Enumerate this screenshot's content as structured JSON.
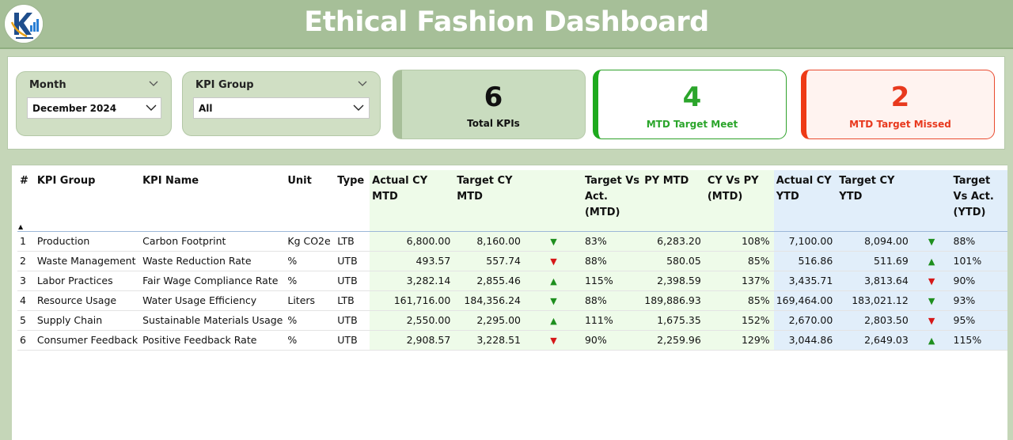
{
  "header": {
    "title": "Ethical Fashion Dashboard"
  },
  "filters": {
    "month": {
      "label": "Month",
      "value": "December 2024"
    },
    "kpi_group": {
      "label": "KPI Group",
      "value": "All"
    }
  },
  "cards": {
    "total": {
      "value": "6",
      "label": "Total KPIs"
    },
    "meet": {
      "value": "4",
      "label": "MTD Target Meet"
    },
    "missed": {
      "value": "2",
      "label": "MTD Target Missed"
    }
  },
  "colors": {
    "header": "#a6bf98",
    "meet": "#2ba52b",
    "missed": "#e8391e",
    "mtd_band": "#eefbe9",
    "ytd_band": "#e1eefa"
  },
  "table": {
    "columns": {
      "index": "#",
      "kpi_group": "KPI Group",
      "kpi_name": "KPI Name",
      "unit": "Unit",
      "type": "Type",
      "actual_cy_mtd": "Actual CY MTD",
      "target_cy_mtd": "Target CY MTD",
      "target_vs_act_mtd": "Target Vs Act. (MTD)",
      "py_mtd": "PY MTD",
      "cy_vs_py_mtd": "CY Vs PY (MTD)",
      "actual_cy_ytd": "Actual CY YTD",
      "target_cy_ytd": "Target CY YTD",
      "target_vs_act_ytd": "Target Vs Act. (YTD)"
    },
    "rows": [
      {
        "idx": "1",
        "group": "Production",
        "name": "Carbon Footprint",
        "unit": "Kg CO2e",
        "type": "LTB",
        "act_mtd": "6,800.00",
        "tgt_mtd": "8,160.00",
        "mtd_icon": "down-green",
        "mtd_pct": "83%",
        "py_mtd": "6,283.20",
        "cy_py": "108%",
        "act_ytd": "7,100.00",
        "tgt_ytd": "8,094.00",
        "ytd_icon": "down-green",
        "ytd_pct": "88%"
      },
      {
        "idx": "2",
        "group": "Waste Management",
        "name": "Waste Reduction Rate",
        "unit": "%",
        "type": "UTB",
        "act_mtd": "493.57",
        "tgt_mtd": "557.74",
        "mtd_icon": "down-red",
        "mtd_pct": "88%",
        "py_mtd": "580.05",
        "cy_py": "85%",
        "act_ytd": "516.86",
        "tgt_ytd": "511.69",
        "ytd_icon": "up-green",
        "ytd_pct": "101%"
      },
      {
        "idx": "3",
        "group": "Labor Practices",
        "name": "Fair Wage Compliance Rate",
        "unit": "%",
        "type": "UTB",
        "act_mtd": "3,282.14",
        "tgt_mtd": "2,855.46",
        "mtd_icon": "up-green",
        "mtd_pct": "115%",
        "py_mtd": "2,398.59",
        "cy_py": "137%",
        "act_ytd": "3,435.71",
        "tgt_ytd": "3,813.64",
        "ytd_icon": "down-red",
        "ytd_pct": "90%"
      },
      {
        "idx": "4",
        "group": "Resource Usage",
        "name": "Water Usage Efficiency",
        "unit": "Liters",
        "type": "LTB",
        "act_mtd": "161,716.00",
        "tgt_mtd": "184,356.24",
        "mtd_icon": "down-green",
        "mtd_pct": "88%",
        "py_mtd": "189,886.93",
        "cy_py": "85%",
        "act_ytd": "169,464.00",
        "tgt_ytd": "183,021.12",
        "ytd_icon": "down-green",
        "ytd_pct": "93%"
      },
      {
        "idx": "5",
        "group": "Supply Chain",
        "name": "Sustainable Materials Usage",
        "unit": "%",
        "type": "UTB",
        "act_mtd": "2,550.00",
        "tgt_mtd": "2,295.00",
        "mtd_icon": "up-green",
        "mtd_pct": "111%",
        "py_mtd": "1,675.35",
        "cy_py": "152%",
        "act_ytd": "2,670.00",
        "tgt_ytd": "2,803.50",
        "ytd_icon": "down-red",
        "ytd_pct": "95%"
      },
      {
        "idx": "6",
        "group": "Consumer Feedback",
        "name": "Positive Feedback Rate",
        "unit": "%",
        "type": "UTB",
        "act_mtd": "2,908.57",
        "tgt_mtd": "3,228.51",
        "mtd_icon": "down-red",
        "mtd_pct": "90%",
        "py_mtd": "2,259.96",
        "cy_py": "129%",
        "act_ytd": "3,044.86",
        "tgt_ytd": "2,649.03",
        "ytd_icon": "up-green",
        "ytd_pct": "115%"
      }
    ]
  }
}
